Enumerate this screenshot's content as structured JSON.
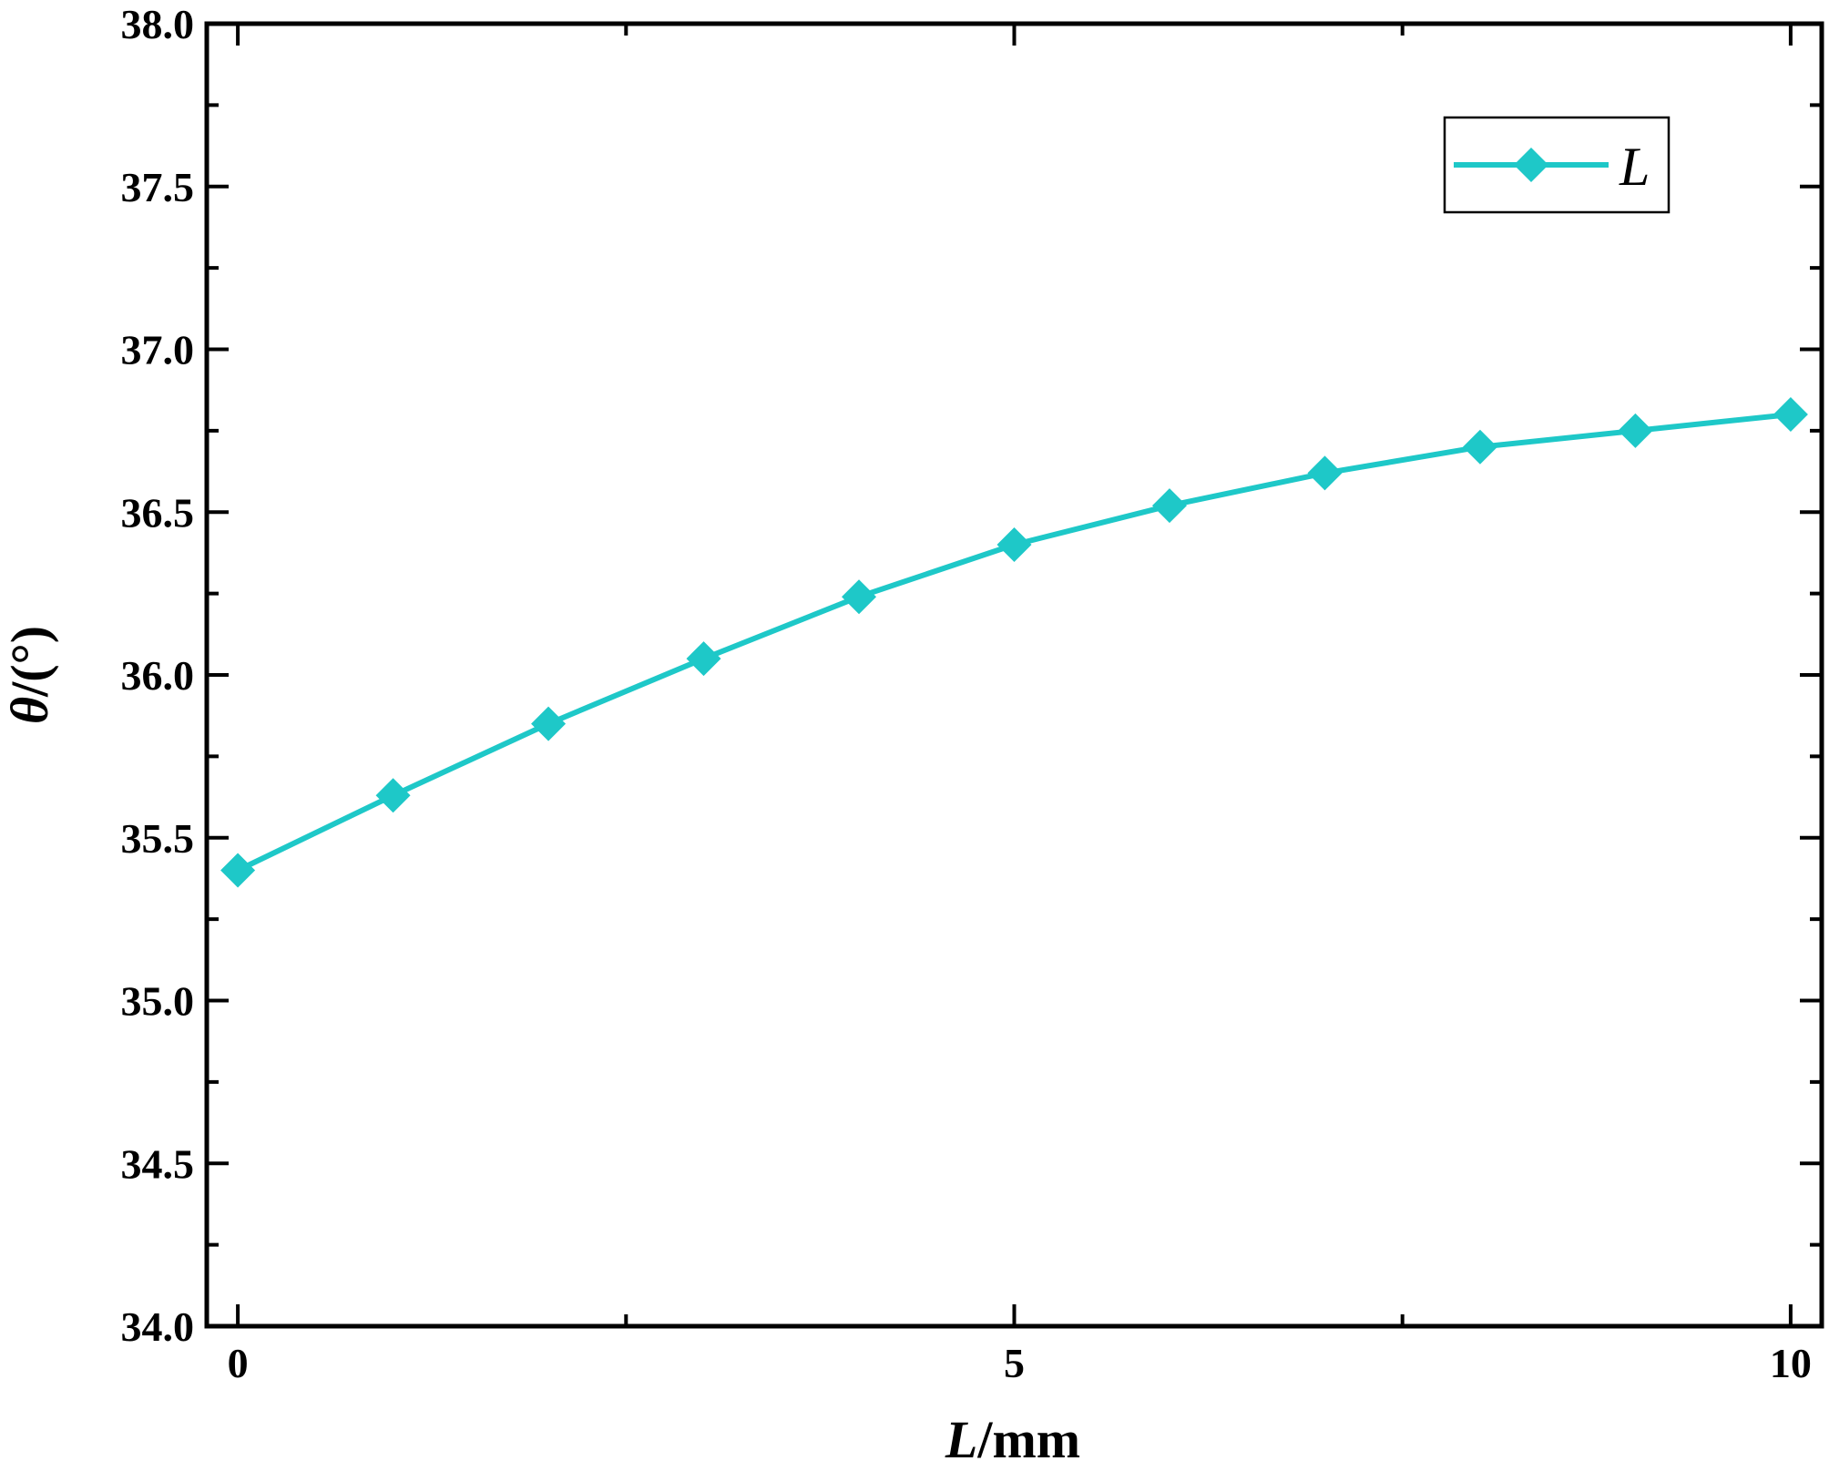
{
  "chart_data": {
    "type": "line",
    "x": [
      0,
      1,
      2,
      3,
      4,
      5,
      6,
      7,
      8,
      9,
      10
    ],
    "series": [
      {
        "name": "L",
        "values": [
          35.4,
          35.63,
          35.85,
          36.05,
          36.24,
          36.4,
          36.52,
          36.62,
          36.7,
          36.75,
          36.8
        ],
        "color": "#1ec8c8",
        "marker": "diamond"
      }
    ],
    "xlabel_italic": "L",
    "xlabel_rest": "/mm",
    "ylabel_italic": "θ",
    "ylabel_rest": "/(°)",
    "xlim": [
      -0.2,
      10.2
    ],
    "ylim": [
      34.0,
      38.0
    ],
    "xticks": [
      0,
      5,
      10
    ],
    "xtick_labels": [
      "0",
      "5",
      "10"
    ],
    "yticks": [
      34.0,
      34.5,
      35.0,
      35.5,
      36.0,
      36.5,
      37.0,
      37.5,
      38.0
    ],
    "ytick_labels": [
      "34.0",
      "34.5",
      "35.0",
      "35.5",
      "36.0",
      "36.5",
      "37.0",
      "37.5",
      "38.0"
    ],
    "grid": false,
    "legend_position": "top-right"
  }
}
